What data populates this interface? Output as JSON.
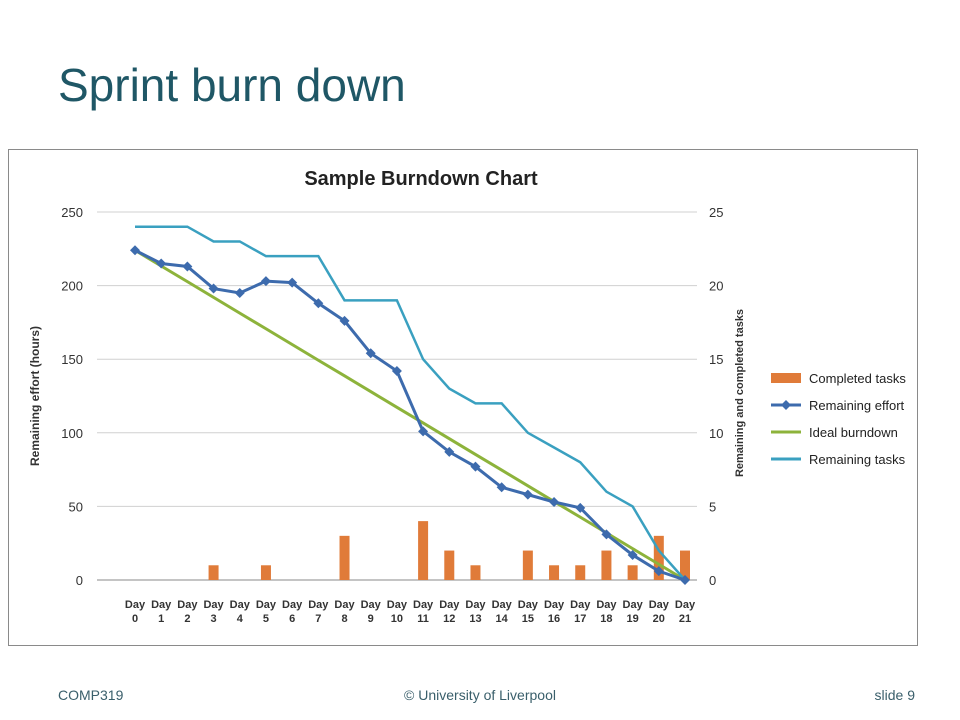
{
  "slide": {
    "title": "Sprint burn down",
    "footer_left": "COMP319",
    "footer_center": "© University of Liverpool",
    "footer_right": "slide  9"
  },
  "chart_data": {
    "type": "bar+line",
    "title": "Sample Burndown Chart",
    "ylabel": "Remaining effort (hours)",
    "y2label": "Remaining and completed tasks",
    "ylim": [
      0,
      250
    ],
    "y2lim": [
      0,
      25
    ],
    "yticks": [
      0,
      50,
      100,
      150,
      200,
      250
    ],
    "y2ticks": [
      0,
      5,
      10,
      15,
      20,
      25
    ],
    "grid": true,
    "legend_position": "right",
    "categories": [
      [
        "Day",
        "0"
      ],
      [
        "Day",
        "1"
      ],
      [
        "Day",
        "2"
      ],
      [
        "Day",
        "3"
      ],
      [
        "Day",
        "4"
      ],
      [
        "Day",
        "5"
      ],
      [
        "Day",
        "6"
      ],
      [
        "Day",
        "7"
      ],
      [
        "Day",
        "8"
      ],
      [
        "Day",
        "9"
      ],
      [
        "Day",
        "10"
      ],
      [
        "Day",
        "11"
      ],
      [
        "Day",
        "12"
      ],
      [
        "Day",
        "13"
      ],
      [
        "Day",
        "14"
      ],
      [
        "Day",
        "15"
      ],
      [
        "Day",
        "16"
      ],
      [
        "Day",
        "17"
      ],
      [
        "Day",
        "18"
      ],
      [
        "Day",
        "19"
      ],
      [
        "Day",
        "20"
      ],
      [
        "Day",
        "21"
      ]
    ],
    "series": [
      {
        "name": "Completed tasks",
        "kind": "bar",
        "axis": "right",
        "color": "#e07b39",
        "values": [
          0,
          0,
          0,
          1,
          0,
          1,
          0,
          0,
          3,
          0,
          0,
          4,
          2,
          1,
          0,
          2,
          1,
          1,
          2,
          1,
          3,
          2
        ]
      },
      {
        "name": "Remaining effort",
        "kind": "line-marker",
        "axis": "left",
        "color": "#3d6bad",
        "values": [
          224,
          215,
          213,
          198,
          195,
          203,
          202,
          188,
          176,
          154,
          142,
          101,
          87,
          77,
          63,
          58,
          53,
          49,
          31,
          17,
          6,
          0
        ]
      },
      {
        "name": "Ideal burndown",
        "kind": "line",
        "axis": "left",
        "color": "#8db33b",
        "values": [
          224,
          213.3,
          202.7,
          192,
          181.3,
          170.7,
          160,
          149.3,
          138.7,
          128,
          117.3,
          106.7,
          96,
          85.3,
          74.7,
          64,
          53.3,
          42.7,
          32,
          21.3,
          10.7,
          0
        ]
      },
      {
        "name": "Remaining tasks",
        "kind": "step-line",
        "axis": "right",
        "color": "#3aa0c0",
        "values": [
          24,
          24,
          24,
          23,
          23,
          22,
          22,
          22,
          19,
          19,
          19,
          15,
          13,
          12,
          12,
          10,
          9,
          8,
          6,
          5,
          2,
          0
        ]
      }
    ]
  }
}
